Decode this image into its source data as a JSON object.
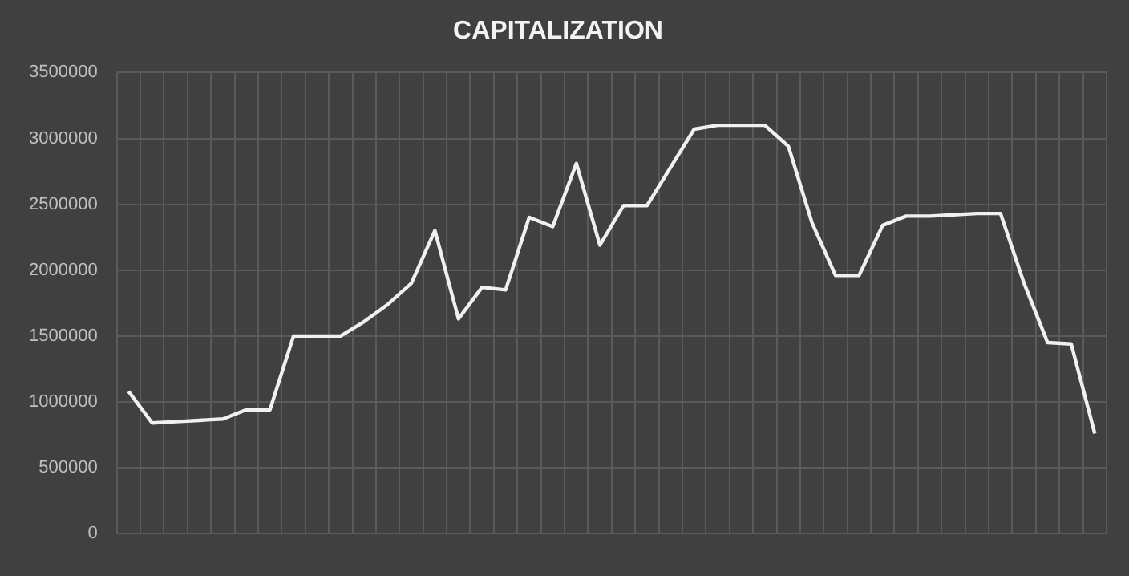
{
  "chart_data": {
    "type": "line",
    "title": "CAPITALIZATION",
    "categories": [
      null,
      null,
      null,
      null,
      null,
      null,
      null,
      null,
      null,
      null,
      null,
      null,
      null,
      null,
      null,
      null,
      null,
      null,
      null,
      null,
      null,
      null,
      null,
      null,
      null,
      null,
      null,
      null,
      null,
      null,
      null,
      null,
      null,
      null,
      null,
      null,
      null,
      null,
      null,
      null,
      null,
      null
    ],
    "series": [
      {
        "color": "#f2eef2",
        "values": [
          1080000,
          840000,
          850000,
          860000,
          870000,
          940000,
          940000,
          1500000,
          1500000,
          1500000,
          1610000,
          1740000,
          1900000,
          2300000,
          1630000,
          1870000,
          1850000,
          2400000,
          2330000,
          2810000,
          2190000,
          2490000,
          2490000,
          2780000,
          3070000,
          3100000,
          3100000,
          3100000,
          2940000,
          2360000,
          1960000,
          1960000,
          2340000,
          2410000,
          2410000,
          2420000,
          2430000,
          2430000,
          1900000,
          1450000,
          1440000,
          760000
        ]
      }
    ],
    "ylim": [
      0,
      3500000
    ],
    "yticks": [
      0,
      500000,
      1000000,
      1500000,
      2000000,
      2500000,
      3000000,
      3500000
    ],
    "grid": true,
    "legend": false,
    "marker": "none",
    "line_style": "solid"
  }
}
